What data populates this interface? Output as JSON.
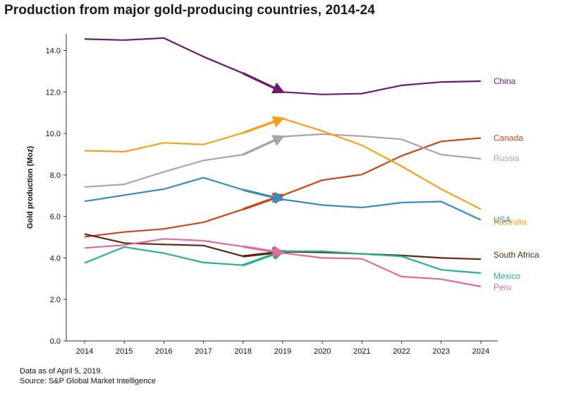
{
  "title": "Production from major gold-producing countries, 2014-24",
  "footer": {
    "note": "Data as of April 5, 2019.",
    "source": "Source: S&P Global Market Intelligence"
  },
  "chart_data": {
    "type": "line",
    "title": "Production from major gold-producing countries, 2014-24",
    "xlabel": "",
    "ylabel": "Gold production (Moz)",
    "x": [
      2014,
      2015,
      2016,
      2017,
      2018,
      2019,
      2020,
      2021,
      2022,
      2023,
      2024
    ],
    "xtick_labels": [
      "2014",
      "2015",
      "2016",
      "2017",
      "2018",
      "2019",
      "2020",
      "2021",
      "2022",
      "2023",
      "2024"
    ],
    "ylim": [
      0,
      14.8
    ],
    "yticks": [
      0,
      2,
      4,
      6,
      8,
      10,
      12,
      14
    ],
    "ytick_labels": [
      "0.0",
      "2.0",
      "4.0",
      "6.0",
      "8.0",
      "10.0",
      "12.0",
      "14.0"
    ],
    "grid": false,
    "legend": "labels at right end of each line",
    "forecast_arrows": "arrows on each series from 2018 to 2019",
    "series": [
      {
        "name": "China",
        "color": "#6a1b6e",
        "values": [
          14.55,
          14.5,
          14.6,
          13.7,
          12.9,
          12.0,
          11.88,
          11.92,
          12.32,
          12.48,
          12.52
        ]
      },
      {
        "name": "Canada",
        "color": "#c8481a",
        "values": [
          5.02,
          5.25,
          5.4,
          5.72,
          6.35,
          7.02,
          7.75,
          8.02,
          8.92,
          9.62,
          9.78
        ]
      },
      {
        "name": "Russia",
        "color": "#a6a6a6",
        "values": [
          7.42,
          7.55,
          8.15,
          8.7,
          8.98,
          9.85,
          9.97,
          9.87,
          9.72,
          8.98,
          8.78
        ]
      },
      {
        "name": "Australia",
        "color": "#f7a11a",
        "values": [
          9.17,
          9.12,
          9.55,
          9.47,
          10.03,
          10.72,
          10.12,
          9.43,
          8.42,
          7.32,
          6.35
        ]
      },
      {
        "name": "USA",
        "color": "#3d8bbd",
        "values": [
          6.73,
          7.03,
          7.32,
          7.87,
          7.28,
          6.82,
          6.55,
          6.43,
          6.67,
          6.72,
          5.83
        ]
      },
      {
        "name": "South Africa",
        "color": "#5a2a12",
        "values": [
          5.15,
          4.72,
          4.65,
          4.6,
          4.08,
          4.3,
          4.27,
          4.2,
          4.12,
          4.0,
          3.94
        ]
      },
      {
        "name": "Mexico",
        "color": "#26b38f",
        "values": [
          3.76,
          4.53,
          4.23,
          3.78,
          3.65,
          4.33,
          4.32,
          4.2,
          4.08,
          3.43,
          3.27
        ]
      },
      {
        "name": "Peru",
        "color": "#e26a9d",
        "values": [
          4.48,
          4.62,
          4.92,
          4.83,
          4.55,
          4.24,
          4.0,
          3.96,
          3.1,
          2.98,
          2.62
        ]
      }
    ]
  }
}
